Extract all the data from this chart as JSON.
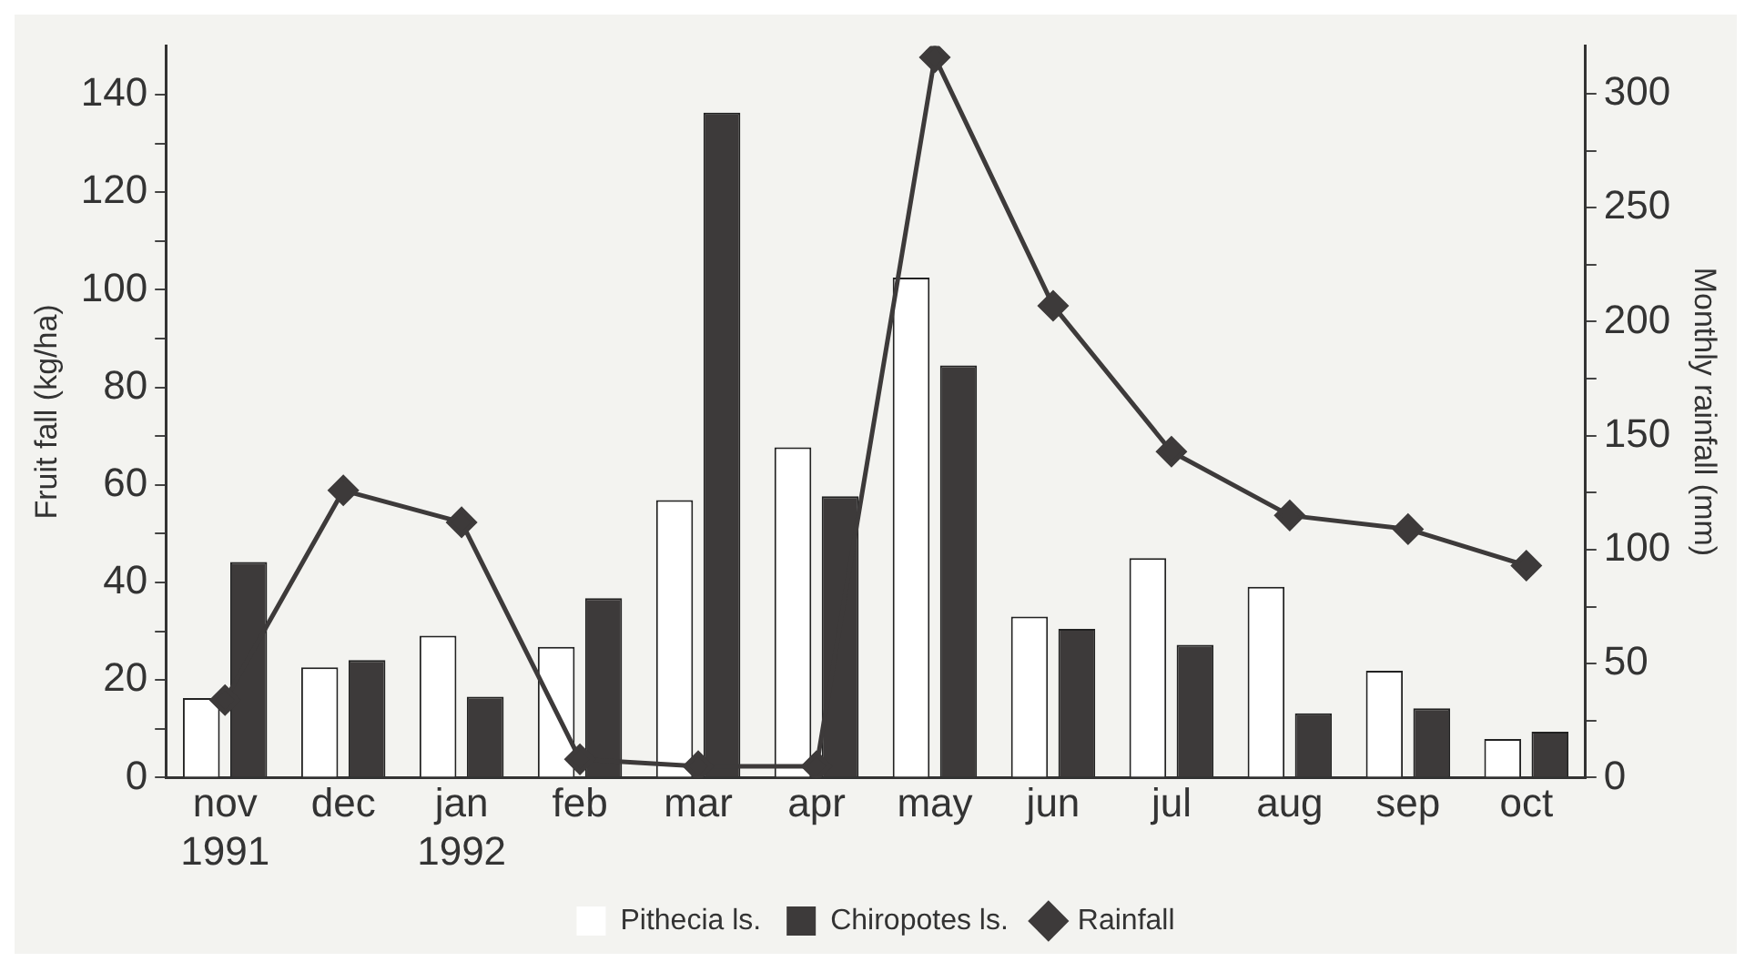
{
  "chart_data": {
    "type": "bar",
    "categories": [
      "nov\n1991",
      "dec",
      "jan\n1992",
      "feb",
      "mar",
      "apr",
      "may",
      "jun",
      "jul",
      "aug",
      "sep",
      "oct"
    ],
    "series": [
      {
        "name": "Pithecia ls.",
        "color": "#ffffff",
        "values": [
          16.3,
          22.6,
          29.1,
          26.8,
          56.9,
          67.7,
          102.5,
          33,
          45,
          39.1,
          21.9,
          7.9
        ]
      },
      {
        "name": "Chiropotes ls.",
        "color": "#3d3a3a",
        "values": [
          44.2,
          24.1,
          16.6,
          36.8,
          136.3,
          57.7,
          84.5,
          30.5,
          27.2,
          13.2,
          14.2,
          9.4
        ]
      },
      {
        "name": "Rainfall",
        "type": "line",
        "axis": "y2",
        "color": "#3d3a3a",
        "marker": "diamond",
        "values": [
          34,
          126,
          112,
          8,
          5,
          5,
          316,
          207,
          143,
          115,
          109,
          93
        ]
      }
    ],
    "ylabel": "Fruit fall (kg/ha)",
    "y2label": "Monthly rainfall (mm)",
    "ylim": [
      0,
      150
    ],
    "yticks": [
      0,
      {
        "value": 10,
        "label": null
      },
      20,
      {
        "value": 30,
        "label": null
      },
      40,
      {
        "value": 50,
        "label": null
      },
      60,
      {
        "value": 70,
        "label": null
      },
      80,
      {
        "value": 90,
        "label": null
      },
      100,
      {
        "value": 110,
        "label": null
      },
      120,
      {
        "value": 130,
        "label": null
      },
      140
    ],
    "y2lim": [
      0,
      321
    ],
    "y2ticks": [
      0,
      {
        "value": 25,
        "label": null
      },
      50,
      {
        "value": 75,
        "label": null
      },
      100,
      {
        "value": 125,
        "label": null
      },
      150,
      {
        "value": 175,
        "label": null
      },
      200,
      {
        "value": 225,
        "label": null
      },
      250,
      {
        "value": 275,
        "label": null
      },
      300
    ],
    "legend": "bottom",
    "grid": false
  }
}
